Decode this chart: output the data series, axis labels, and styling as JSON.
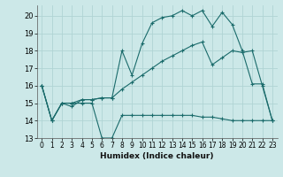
{
  "xlabel": "Humidex (Indice chaleur)",
  "xlim": [
    -0.5,
    23.5
  ],
  "ylim": [
    13,
    20.6
  ],
  "yticks": [
    13,
    14,
    15,
    16,
    17,
    18,
    19,
    20
  ],
  "xticks": [
    0,
    1,
    2,
    3,
    4,
    5,
    6,
    7,
    8,
    9,
    10,
    11,
    12,
    13,
    14,
    15,
    16,
    17,
    18,
    19,
    20,
    21,
    22,
    23
  ],
  "bg_color": "#cce8e8",
  "grid_color": "#b0d4d4",
  "line_color": "#1a6b6b",
  "line1_x": [
    0,
    1,
    2,
    3,
    4,
    5,
    6,
    7,
    8,
    9,
    10,
    11,
    12,
    13,
    14,
    15,
    16,
    17,
    18,
    19,
    20,
    21,
    22,
    23
  ],
  "line1_y": [
    16,
    14,
    15,
    15,
    15,
    15,
    13,
    13,
    14.3,
    14.3,
    14.3,
    14.3,
    14.3,
    14.3,
    14.3,
    14.3,
    14.2,
    14.2,
    14.1,
    14.0,
    14.0,
    14.0,
    14.0,
    14.0
  ],
  "line2_x": [
    0,
    1,
    2,
    3,
    4,
    5,
    6,
    7,
    8,
    9,
    10,
    11,
    12,
    13,
    14,
    15,
    16,
    17,
    18,
    19,
    20,
    21,
    22,
    23
  ],
  "line2_y": [
    16,
    14,
    15,
    15,
    15.2,
    15.2,
    15.3,
    15.3,
    18.0,
    16.6,
    18.4,
    19.6,
    19.9,
    20.0,
    20.3,
    20.0,
    20.3,
    19.4,
    20.2,
    19.5,
    18.0,
    16.1,
    16.1,
    14.0
  ],
  "line3_x": [
    0,
    1,
    2,
    3,
    4,
    5,
    6,
    7,
    8,
    9,
    10,
    11,
    12,
    13,
    14,
    15,
    16,
    17,
    18,
    19,
    20,
    21,
    22,
    23
  ],
  "line3_y": [
    16,
    14,
    15,
    14.8,
    15.2,
    15.2,
    15.3,
    15.3,
    15.8,
    16.2,
    16.6,
    17.0,
    17.4,
    17.7,
    18.0,
    18.3,
    18.5,
    17.2,
    17.6,
    18.0,
    17.9,
    18.0,
    16.0,
    14.0
  ]
}
